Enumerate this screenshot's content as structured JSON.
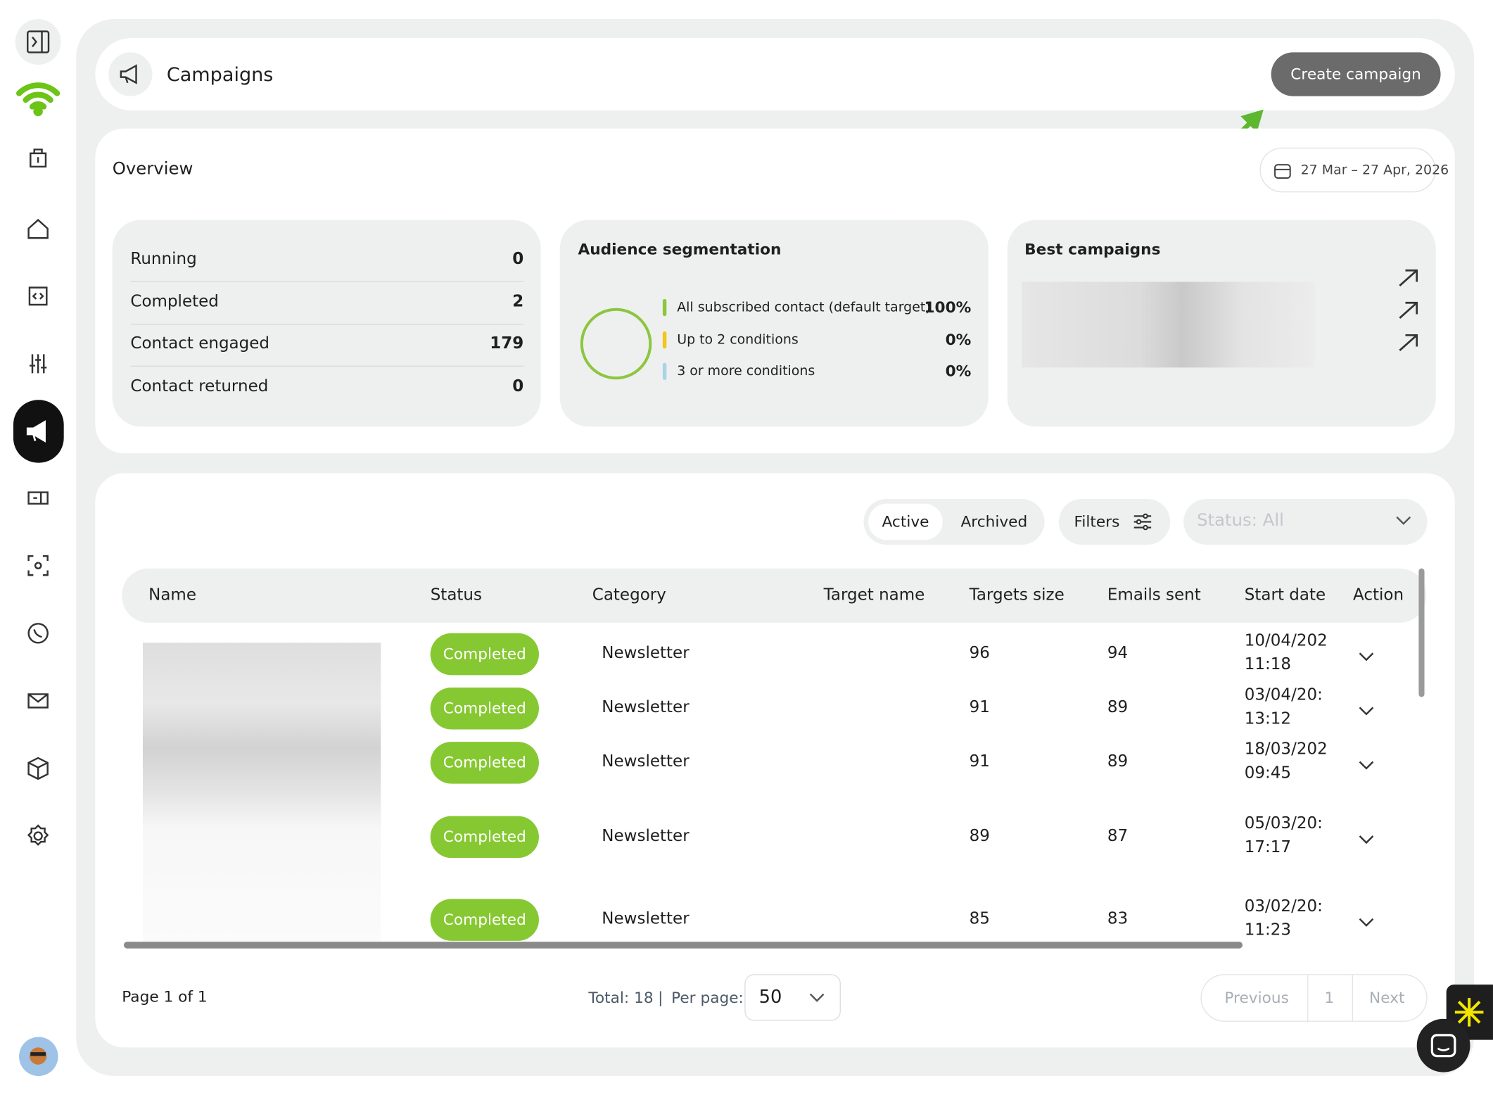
{
  "header": {
    "title": "Campaigns",
    "button": "Create campaign"
  },
  "overview": {
    "title": "Overview",
    "date_range": "27 Mar – 27 Apr, 2026",
    "stats": [
      {
        "label": "Running",
        "value": 0
      },
      {
        "label": "Completed",
        "value": 2
      },
      {
        "label": "Contact engaged",
        "value": 179
      },
      {
        "label": "Contact returned",
        "value": 0
      }
    ],
    "segmentation": {
      "title": "Audience segmentation",
      "items": [
        {
          "label": "All subscribed contact (default target)",
          "value": "100%",
          "color": "#8cc63f"
        },
        {
          "label": "Up to 2 conditions",
          "value": "0%",
          "color": "#f5c518"
        },
        {
          "label": "3 or more conditions",
          "value": "0%",
          "color": "#a8d4e6"
        }
      ]
    },
    "best_campaigns": {
      "title": "Best campaigns"
    }
  },
  "controls": {
    "tabs": [
      "Active",
      "Archived"
    ],
    "filters": "Filters",
    "status_select": "Status: All"
  },
  "table": {
    "columns": [
      "Name",
      "Status",
      "Category",
      "Target name",
      "Targets size",
      "Emails sent",
      "Start date",
      "Action"
    ],
    "rows": [
      {
        "status": "Completed",
        "category": "Newsletter",
        "targets_size": 96,
        "emails_sent": 94,
        "start_date": "10/04/202",
        "start_time": "11:18"
      },
      {
        "status": "Completed",
        "category": "Newsletter",
        "targets_size": 91,
        "emails_sent": 89,
        "start_date": "03/04/20:",
        "start_time": "13:12"
      },
      {
        "status": "Completed",
        "category": "Newsletter",
        "targets_size": 91,
        "emails_sent": 89,
        "start_date": "18/03/202",
        "start_time": "09:45"
      },
      {
        "status": "Completed",
        "category": "Newsletter",
        "targets_size": 89,
        "emails_sent": 87,
        "start_date": "05/03/20:",
        "start_time": "17:17"
      },
      {
        "status": "Completed",
        "category": "Newsletter",
        "targets_size": 85,
        "emails_sent": 83,
        "start_date": "03/02/20:",
        "start_time": "11:23"
      }
    ]
  },
  "pagination": {
    "page": "Page 1 of 1",
    "total": "Total: 18",
    "separator": "|",
    "per_page_label": "Per page:",
    "per_page": 50,
    "previous": "Previous",
    "current": 1,
    "next": "Next"
  }
}
